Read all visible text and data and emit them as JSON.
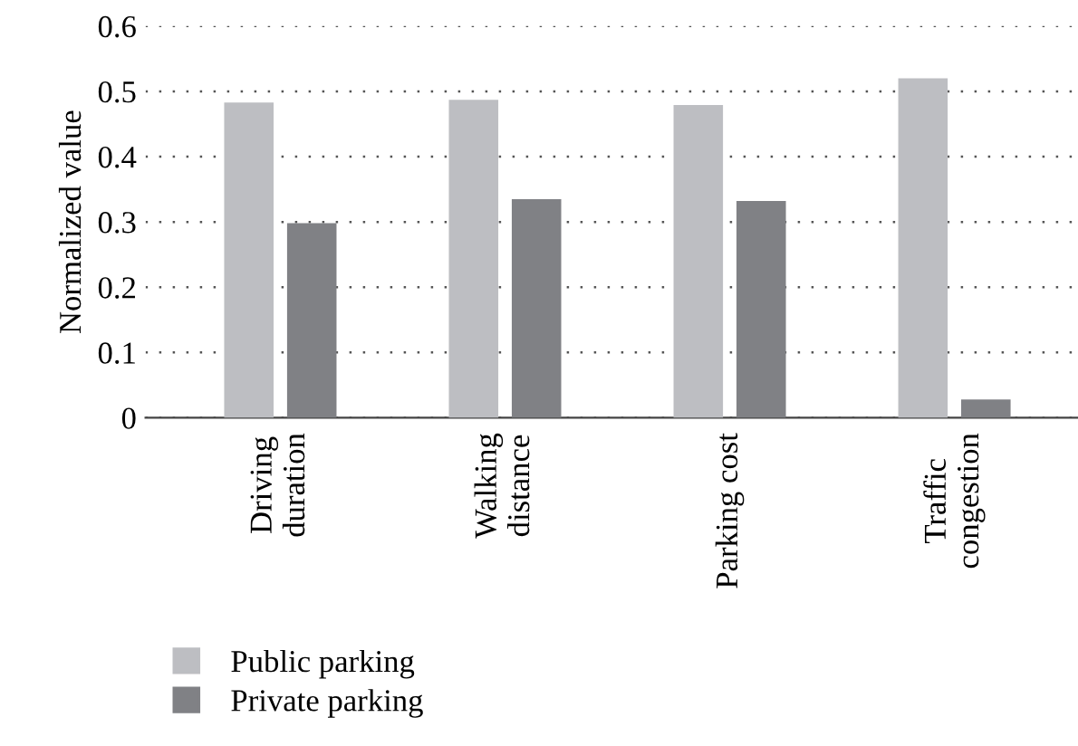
{
  "chart_data": {
    "type": "bar",
    "ylabel": "Normalized value",
    "categories": [
      "Driving\nduration",
      "Walking\ndistance",
      "Parking cost",
      "Traffic\ncongestion"
    ],
    "series": [
      {
        "name": "Public parking",
        "color": "#bdbec2",
        "values": [
          0.483,
          0.487,
          0.479,
          0.52
        ]
      },
      {
        "name": "Private parking",
        "color": "#808185",
        "values": [
          0.298,
          0.335,
          0.332,
          0.028
        ]
      }
    ],
    "ylim": [
      0,
      0.6
    ],
    "yticks": [
      0,
      0.1,
      0.2,
      0.3,
      0.4,
      0.5,
      0.6
    ],
    "grid": "y",
    "legend": "bottom left"
  }
}
